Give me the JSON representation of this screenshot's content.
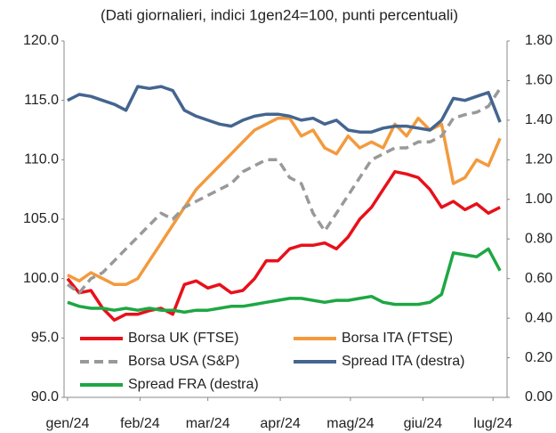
{
  "chart_data": {
    "type": "line",
    "subtitle": "(Dati giornalieri, indici 1gen24=100, punti percentuali)",
    "x": [
      0,
      5,
      10,
      15,
      20,
      25,
      30,
      35,
      40,
      45,
      50,
      55,
      60,
      65,
      70,
      75,
      80,
      85,
      90,
      95,
      100,
      105,
      110,
      115,
      120,
      125,
      130,
      135,
      140,
      145,
      150,
      155,
      160,
      165,
      170,
      175,
      180,
      185
    ],
    "xlim": [
      -1.5,
      188
    ],
    "xticks": [
      {
        "value": 0,
        "label": "gen/24"
      },
      {
        "value": 31,
        "label": "feb/24"
      },
      {
        "value": 60,
        "label": "mar/24"
      },
      {
        "value": 91,
        "label": "apr/24"
      },
      {
        "value": 121,
        "label": "mag/24"
      },
      {
        "value": 152,
        "label": "giu/24"
      },
      {
        "value": 182,
        "label": "lug/24"
      }
    ],
    "ylim": [
      90,
      120
    ],
    "yticks": [
      {
        "value": 90,
        "label": "90.0"
      },
      {
        "value": 95,
        "label": "95.0"
      },
      {
        "value": 100,
        "label": "100.0"
      },
      {
        "value": 105,
        "label": "105.0"
      },
      {
        "value": 110,
        "label": "110.0"
      },
      {
        "value": 115,
        "label": "115.0"
      },
      {
        "value": 120,
        "label": "120.0"
      }
    ],
    "y2lim": [
      0,
      1.8
    ],
    "y2ticks": [
      {
        "value": 0,
        "label": "0.00"
      },
      {
        "value": 0.2,
        "label": "0.20"
      },
      {
        "value": 0.4,
        "label": "0.40"
      },
      {
        "value": 0.6,
        "label": "0.60"
      },
      {
        "value": 0.8,
        "label": "0.80"
      },
      {
        "value": 1.0,
        "label": "1.00"
      },
      {
        "value": 1.2,
        "label": "1.20"
      },
      {
        "value": 1.4,
        "label": "1.40"
      },
      {
        "value": 1.6,
        "label": "1.60"
      },
      {
        "value": 1.8,
        "label": "1.80"
      }
    ],
    "legend": "lower left",
    "series": [
      {
        "name": "Borsa UK (FTSE)",
        "color": "#e8101a",
        "values": [
          100,
          98.8,
          99,
          97.5,
          96.5,
          97,
          97,
          97.3,
          97.5,
          97,
          99.5,
          99.8,
          99.2,
          99.5,
          98.8,
          99,
          100,
          101.5,
          101.5,
          102.5,
          102.8,
          102.8,
          103,
          102.5,
          103.5,
          105,
          106,
          107.5,
          109,
          108.8,
          108.5,
          107.5,
          106,
          106.5,
          105.8,
          106.3,
          105.5,
          106
        ]
      },
      {
        "name": "Borsa ITA (FTSE)",
        "color": "#f39a3d",
        "values": [
          100.3,
          99.8,
          100.5,
          100,
          99.5,
          99.5,
          100,
          101.5,
          103,
          104.5,
          106,
          107.5,
          108.5,
          109.5,
          110.5,
          111.5,
          112.5,
          113,
          113.5,
          113.5,
          112,
          112.5,
          111,
          110.5,
          112,
          111,
          111.5,
          111,
          113,
          112,
          113.5,
          112.5,
          113,
          108,
          108.5,
          110,
          109.5,
          111.8
        ]
      },
      {
        "name": "Borsa USA (S&P)",
        "color": "#999999",
        "dashed": true,
        "values": [
          99.5,
          98.8,
          100,
          100.5,
          101.5,
          102.5,
          103.5,
          104.5,
          105.5,
          105,
          106,
          106.5,
          107,
          107.5,
          108,
          109,
          109.5,
          110,
          110,
          108.5,
          108,
          105.5,
          104,
          105.5,
          107,
          108.5,
          110,
          110.5,
          111,
          111,
          111.5,
          111.5,
          112,
          113.5,
          113.8,
          114,
          114.5,
          116
        ]
      },
      {
        "name": "Spread ITA (destra)",
        "color": "#44658f",
        "axis": "y2",
        "values": [
          1.5,
          1.53,
          1.52,
          1.5,
          1.48,
          1.45,
          1.57,
          1.56,
          1.57,
          1.55,
          1.45,
          1.42,
          1.4,
          1.38,
          1.37,
          1.4,
          1.42,
          1.43,
          1.43,
          1.42,
          1.4,
          1.41,
          1.38,
          1.4,
          1.35,
          1.34,
          1.34,
          1.36,
          1.37,
          1.37,
          1.36,
          1.35,
          1.4,
          1.51,
          1.5,
          1.52,
          1.54,
          1.39
        ]
      },
      {
        "name": "Spread FRA (destra)",
        "color": "#1ea743",
        "axis": "y2",
        "values": [
          0.48,
          0.46,
          0.45,
          0.45,
          0.44,
          0.45,
          0.44,
          0.45,
          0.44,
          0.44,
          0.43,
          0.44,
          0.44,
          0.45,
          0.46,
          0.46,
          0.47,
          0.48,
          0.49,
          0.5,
          0.5,
          0.49,
          0.48,
          0.49,
          0.49,
          0.5,
          0.51,
          0.48,
          0.47,
          0.47,
          0.47,
          0.48,
          0.52,
          0.73,
          0.72,
          0.71,
          0.75,
          0.64
        ]
      }
    ]
  }
}
